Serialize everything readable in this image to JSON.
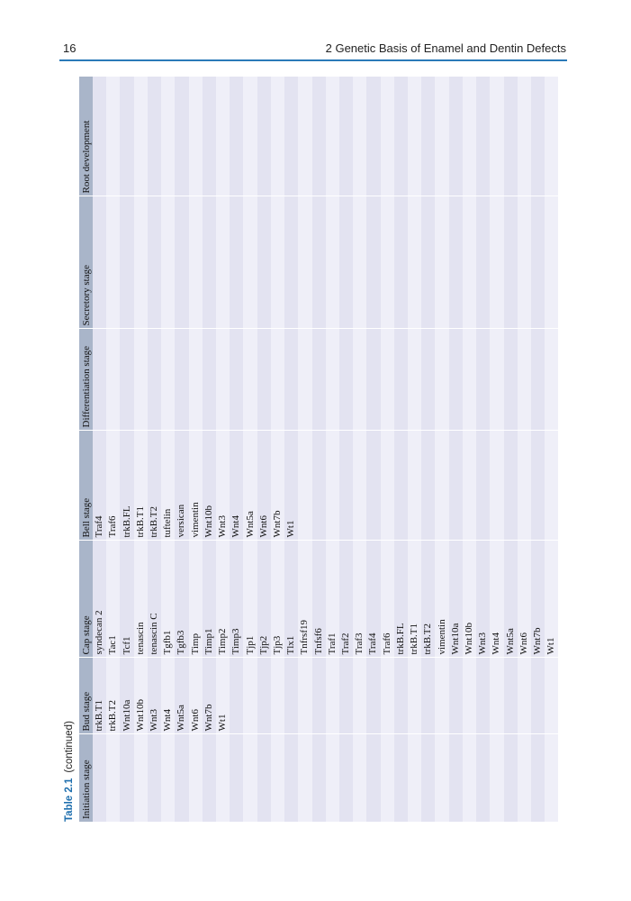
{
  "header": {
    "page_number": "16",
    "running_head": "2   Genetic Basis of Enamel and Dentin Defects"
  },
  "table": {
    "label": "Table 2.1",
    "note": "(continued)",
    "columns": [
      {
        "header": "Initiation stage",
        "items": []
      },
      {
        "header": "Bud stage",
        "items": [
          "trkB.T1",
          "trkB.T2",
          "Wnt10a",
          "Wnt10b",
          "Wnt3",
          "Wnt4",
          "Wnt5a",
          "Wnt6",
          "Wnt7b",
          "Wt1"
        ]
      },
      {
        "header": "Cap stage",
        "items": [
          "syndecan 2",
          "Tac1",
          "Tcf1",
          "tenascin",
          "tenascin C",
          "Tgfb1",
          "Tgfb3",
          "Timp",
          "Timp1",
          "Timp2",
          "Timp3",
          "Tjp1",
          "Tjp2",
          "Tjp3",
          "Tlx1",
          "Tnfrsf19",
          "Tnfsf6",
          "Traf1",
          "Traf2",
          "Traf3",
          "Traf4",
          "Traf6",
          "trkB.FL",
          "trkB.T1",
          "trkB.T2",
          "vimentin",
          "Wnt10a",
          "Wnt10b",
          "Wnt3",
          "Wnt4",
          "Wnt5a",
          "Wnt6",
          "Wnt7b",
          "Wt1"
        ]
      },
      {
        "header": "Bell stage",
        "items": [
          "Traf4",
          "Traf6",
          "trkB.FL",
          "trkB.T1",
          "trkB.T2",
          "tuftelin",
          "versican",
          "vimentin",
          "Wnt10b",
          "Wnt3",
          "Wnt4",
          "Wnt5a",
          "Wnt6",
          "Wnt7b",
          "Wt1"
        ]
      },
      {
        "header": "Differentiation stage",
        "items": []
      },
      {
        "header": "Secretory stage",
        "items": []
      },
      {
        "header": "Root development",
        "items": []
      }
    ]
  }
}
